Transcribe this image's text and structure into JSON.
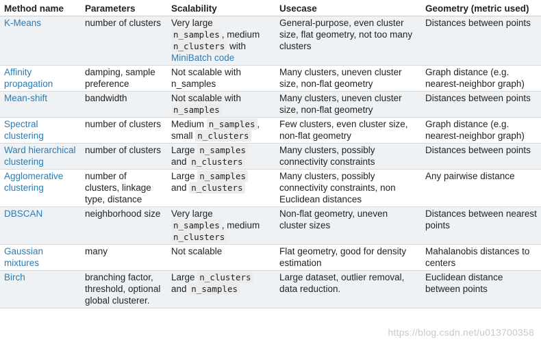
{
  "headers": [
    "Method name",
    "Parameters",
    "Scalability",
    "Usecase",
    "Geometry (metric used)"
  ],
  "rows": [
    {
      "method": "K-Means",
      "params": "number of clusters",
      "scal": {
        "p1": "Very large",
        "c1": "n_samples",
        "p2": ", medium",
        "c2": "n_clusters",
        "p3": " with ",
        "link": "MiniBatch code"
      },
      "usecase": "General-purpose, even cluster size, flat geometry, not too many clusters",
      "geometry": "Distances between points"
    },
    {
      "method": "Affinity propagation",
      "params": "damping, sample preference",
      "scal": {
        "p1": "Not scalable with n_samples"
      },
      "usecase": "Many clusters, uneven cluster size, non-flat geometry",
      "geometry": "Graph distance (e.g. nearest-neighbor graph)"
    },
    {
      "method": "Mean-shift",
      "params": "bandwidth",
      "scal": {
        "p1": "Not scalable with ",
        "c1": "n_samples"
      },
      "usecase": "Many clusters, uneven cluster size, non-flat geometry",
      "geometry": "Distances between points"
    },
    {
      "method": "Spectral clustering",
      "params": "number of clusters",
      "scal": {
        "p1": "Medium ",
        "c1": "n_samples",
        "p2": ", small ",
        "c2": "n_clusters"
      },
      "usecase": "Few clusters, even cluster size, non-flat geometry",
      "geometry": "Graph distance (e.g. nearest-neighbor graph)"
    },
    {
      "method": "Ward hierarchical clustering",
      "params": "number of clusters",
      "scal": {
        "p1": "Large ",
        "c1": "n_samples",
        "p2": " and ",
        "c2": "n_clusters"
      },
      "usecase": "Many clusters, possibly connectivity constraints",
      "geometry": "Distances between points"
    },
    {
      "method": "Agglomerative clustering",
      "params": "number of clusters, linkage type, distance",
      "scal": {
        "p1": "Large ",
        "c1": "n_samples",
        "p2": " and ",
        "c2": "n_clusters"
      },
      "usecase": "Many clusters, possibly connectivity constraints, non Euclidean distances",
      "geometry": "Any pairwise distance"
    },
    {
      "method": "DBSCAN",
      "params": "neighborhood size",
      "scal": {
        "p1": "Very large ",
        "c1": "n_samples",
        "p2": ", medium ",
        "c2": "n_clusters"
      },
      "usecase": "Non-flat geometry, uneven cluster sizes",
      "geometry": "Distances between nearest points"
    },
    {
      "method": "Gaussian mixtures",
      "params": "many",
      "scal": {
        "p1": "Not scalable"
      },
      "usecase": "Flat geometry, good for density estimation",
      "geometry": "Mahalanobis distances to centers"
    },
    {
      "method": "Birch",
      "params": "branching factor, threshold, optional global clusterer.",
      "scal": {
        "p1": "Large ",
        "c1": "n_clusters",
        "p2": " and ",
        "c2": "n_samples"
      },
      "usecase": "Large dataset, outlier removal, data reduction.",
      "geometry": "Euclidean distance between points"
    }
  ],
  "watermark": "https://blog.csdn.net/u013700358"
}
